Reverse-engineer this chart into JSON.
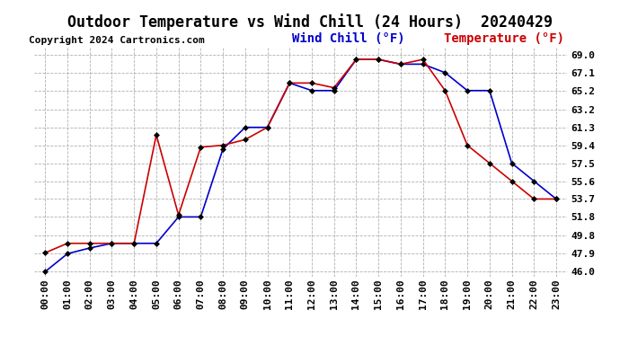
{
  "title": "Outdoor Temperature vs Wind Chill (24 Hours)  20240429",
  "copyright": "Copyright 2024 Cartronics.com",
  "legend_wind_chill": "Wind Chill (°F)",
  "legend_temperature": "Temperature (°F)",
  "x_labels": [
    "00:00",
    "01:00",
    "02:00",
    "03:00",
    "04:00",
    "05:00",
    "06:00",
    "07:00",
    "08:00",
    "09:00",
    "10:00",
    "11:00",
    "12:00",
    "13:00",
    "14:00",
    "15:00",
    "16:00",
    "17:00",
    "18:00",
    "19:00",
    "20:00",
    "21:00",
    "22:00",
    "23:00"
  ],
  "y_ticks": [
    46.0,
    47.9,
    49.8,
    51.8,
    53.7,
    55.6,
    57.5,
    59.4,
    61.3,
    63.2,
    65.2,
    67.1,
    69.0
  ],
  "temperature": [
    48.0,
    49.0,
    49.0,
    49.0,
    49.0,
    60.5,
    52.0,
    59.2,
    59.4,
    60.0,
    61.3,
    66.0,
    66.0,
    65.5,
    68.5,
    68.5,
    68.0,
    68.5,
    65.2,
    59.4,
    57.5,
    55.6,
    53.7,
    53.7
  ],
  "wind_chill": [
    46.0,
    47.9,
    48.5,
    49.0,
    49.0,
    49.0,
    51.8,
    51.8,
    59.0,
    61.3,
    61.3,
    66.0,
    65.2,
    65.2,
    68.5,
    68.5,
    68.0,
    68.0,
    67.1,
    65.2,
    65.2,
    57.5,
    55.6,
    53.7
  ],
  "temp_color": "#cc0000",
  "wind_chill_color": "#0000cc",
  "bg_color": "#ffffff",
  "grid_color": "#b0b0b0",
  "ylim": [
    45.5,
    69.8
  ],
  "xlim": [
    -0.5,
    23.5
  ],
  "title_fontsize": 12,
  "legend_fontsize": 10,
  "copyright_fontsize": 8,
  "tick_fontsize": 8,
  "markersize": 3,
  "linewidth": 1.2
}
